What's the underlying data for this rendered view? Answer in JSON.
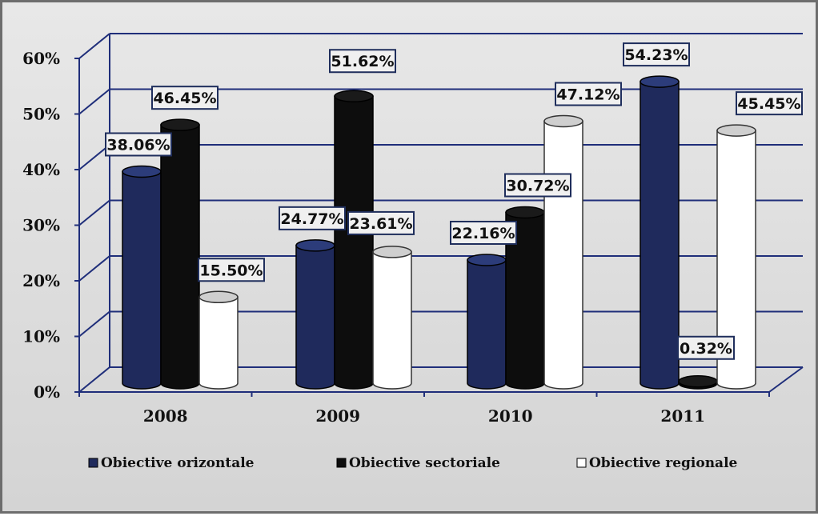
{
  "chart_data": {
    "type": "bar",
    "categories": [
      "2008",
      "2009",
      "2010",
      "2011"
    ],
    "series": [
      {
        "name": "Obiective orizontale",
        "color": "#1f2a5c",
        "top": "#2c3c7a",
        "values": [
          38.06,
          24.77,
          22.16,
          54.23
        ],
        "labels": [
          "38.06%",
          "24.77%",
          "22.16%",
          "54.23%"
        ]
      },
      {
        "name": "Obiective sectoriale",
        "color": "#0d0d0d",
        "top": "#1a1a1a",
        "values": [
          46.45,
          51.62,
          30.72,
          0.32
        ],
        "labels": [
          "46.45%",
          "51.62%",
          "30.72%",
          "0.32%"
        ]
      },
      {
        "name": "Obiective regionale",
        "color": "#ffffff",
        "top": "#cfcfcf",
        "values": [
          15.5,
          23.61,
          47.12,
          45.45
        ],
        "labels": [
          "15.50%",
          "23.61%",
          "47.12%",
          "45.45%"
        ]
      }
    ],
    "yticks": [
      "0%",
      "10%",
      "20%",
      "30%",
      "40%",
      "50%",
      "60%"
    ],
    "ylim": [
      0,
      60
    ],
    "title": "",
    "xlabel": "",
    "ylabel": "",
    "grid": true,
    "legend": "bottom"
  }
}
